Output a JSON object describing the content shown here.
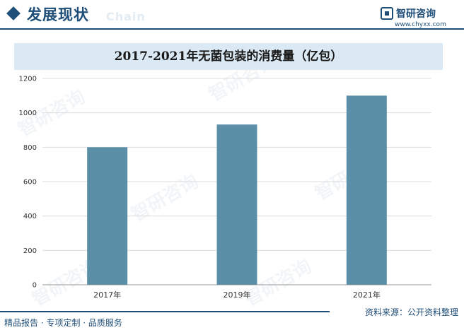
{
  "header": {
    "section_title": "发展现状",
    "ghost_text": "Chain",
    "brand_name": "智研咨询",
    "brand_url": "www.chyxx.com"
  },
  "watermark_text": "智研咨询",
  "chart_data": {
    "type": "bar",
    "title": "2017-2021年无菌包装的消费量（亿包）",
    "categories": [
      "2017年",
      "2019年",
      "2021年"
    ],
    "values": [
      800,
      932,
      1100
    ],
    "ylim": [
      0,
      1200
    ],
    "yticks": [
      0,
      200,
      400,
      600,
      800,
      1000,
      1200
    ],
    "grid": true,
    "bar_color": "#5b8fa8"
  },
  "footer": {
    "left": "精品报告 · 专项定制 · 品质服务",
    "right": "资料来源：公开资料整理"
  }
}
